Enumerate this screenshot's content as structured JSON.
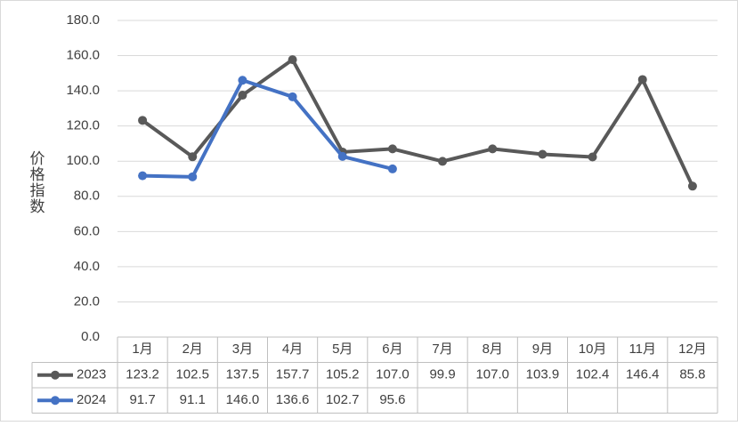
{
  "chart_data": {
    "type": "line",
    "y_label": "价格指数",
    "categories": [
      "1月",
      "2月",
      "3月",
      "4月",
      "5月",
      "6月",
      "7月",
      "8月",
      "9月",
      "10月",
      "11月",
      "12月"
    ],
    "series": [
      {
        "name": "2023",
        "color": "#595959",
        "values": [
          123.2,
          102.5,
          137.5,
          157.7,
          105.2,
          107.0,
          99.9,
          107.0,
          103.9,
          102.4,
          146.4,
          85.8
        ],
        "value_labels": [
          "123.2",
          "102.5",
          "137.5",
          "157.7",
          "105.2",
          "107.0",
          "99.9",
          "107.0",
          "103.9",
          "102.4",
          "146.4",
          "85.8"
        ]
      },
      {
        "name": "2024",
        "color": "#4472c4",
        "values": [
          91.7,
          91.1,
          146.0,
          136.6,
          102.7,
          95.6,
          null,
          null,
          null,
          null,
          null,
          null
        ],
        "value_labels": [
          "91.7",
          "91.1",
          "146.0",
          "136.6",
          "102.7",
          "95.6",
          null,
          null,
          null,
          null,
          null,
          null
        ]
      }
    ],
    "ylim": [
      0,
      180
    ],
    "yticks": [
      {
        "value": 0,
        "label": "0.0"
      },
      {
        "value": 20,
        "label": "20.0"
      },
      {
        "value": 40,
        "label": "40.0"
      },
      {
        "value": 60,
        "label": "60.0"
      },
      {
        "value": 80,
        "label": "80.0"
      },
      {
        "value": 100,
        "label": "100.0"
      },
      {
        "value": 120,
        "label": "120.0"
      },
      {
        "value": 140,
        "label": "140.0"
      },
      {
        "value": 160,
        "label": "160.0"
      },
      {
        "value": 180,
        "label": "180.0"
      }
    ],
    "grid": true
  }
}
